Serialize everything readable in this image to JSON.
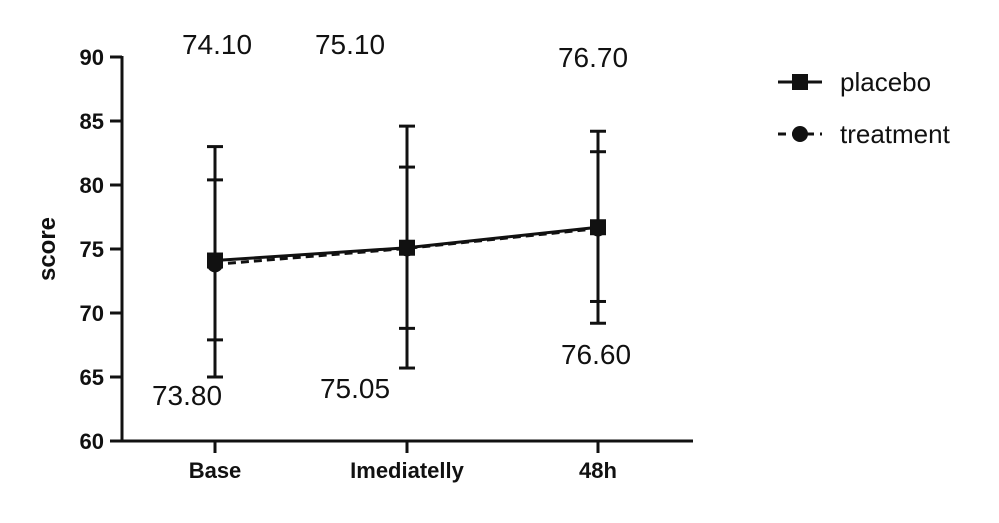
{
  "chart_data": {
    "type": "line",
    "title": "",
    "xlabel": "",
    "ylabel": "score",
    "categories": [
      "Base",
      "Imediatelly",
      "48h"
    ],
    "ylim": [
      60,
      90
    ],
    "yticks": [
      60,
      65,
      70,
      75,
      80,
      85,
      90
    ],
    "grid": false,
    "legend_position": "top-right",
    "series": [
      {
        "name": "placebo",
        "marker": "square",
        "line_style": "solid",
        "values": [
          74.1,
          75.1,
          76.7
        ],
        "error_low": [
          65.0,
          65.7,
          69.2
        ],
        "error_high": [
          83.0,
          84.6,
          84.2
        ],
        "color": "#111111"
      },
      {
        "name": "treatment",
        "marker": "circle",
        "line_style": "dashed",
        "values": [
          73.8,
          75.05,
          76.6
        ],
        "error_low": [
          67.9,
          68.8,
          70.9
        ],
        "error_high": [
          80.4,
          81.4,
          82.6
        ],
        "color": "#111111"
      }
    ],
    "annotations": [
      {
        "text": "74.10",
        "category": "Base",
        "series": "placebo"
      },
      {
        "text": "75.10",
        "category": "Imediatelly",
        "series": "placebo"
      },
      {
        "text": "76.70",
        "category": "48h",
        "series": "placebo"
      },
      {
        "text": "73.80",
        "category": "Base",
        "series": "treatment"
      },
      {
        "text": "75.05",
        "category": "Imediatelly",
        "series": "treatment"
      },
      {
        "text": "76.60",
        "category": "48h",
        "series": "treatment"
      }
    ]
  }
}
